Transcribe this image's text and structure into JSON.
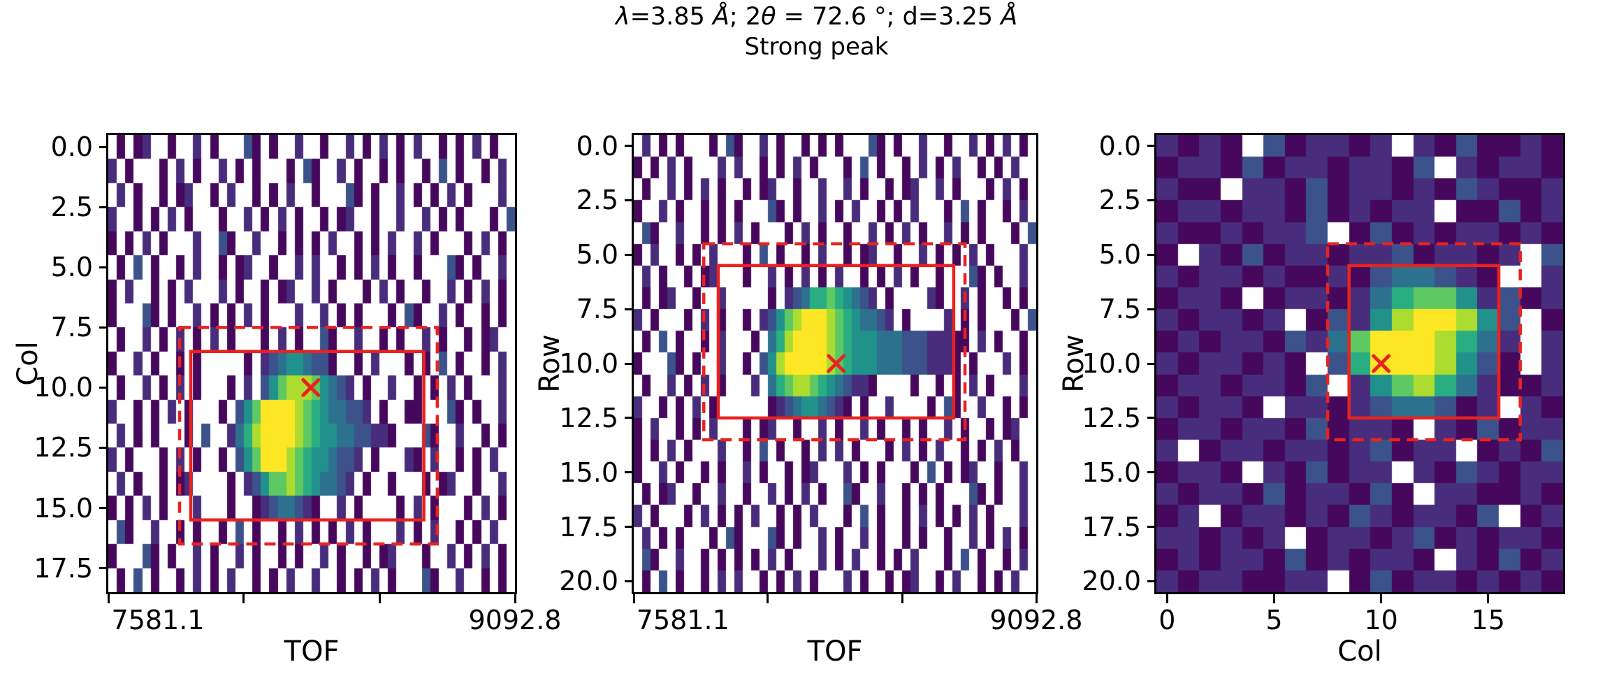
{
  "chart_data": {
    "type": "heatmap",
    "title_segments": [
      {
        "text": "λ",
        "italic": true
      },
      {
        "text": "=3.85 ",
        "italic": false
      },
      {
        "text": "Å",
        "italic": true
      },
      {
        "text": "; 2",
        "italic": false
      },
      {
        "text": "θ",
        "italic": true
      },
      {
        "text": " = 72.6 °; d=3.25 ",
        "italic": false
      },
      {
        "text": "Å",
        "italic": true
      }
    ],
    "title_plain": "λ=3.85 Å; 2θ = 72.6 °; d=3.25 Å",
    "subtitle": "Strong peak",
    "colormap": "viridis",
    "background": "#ffffff",
    "accent_red": "#e8221f",
    "empty_char": ".",
    "palette": {
      "1": "#46085c",
      "2": "#472d7b",
      "3": "#3b528b",
      "4": "#2c728e",
      "5": "#21918c",
      "6": "#28ae80",
      "7": "#5ec962",
      "8": "#addc30",
      "9": "#fde725"
    },
    "panels": [
      {
        "name": "col-vs-tof",
        "xlabel": "TOF",
        "ylabel": "Col",
        "x_range": [
          7581.1,
          9092.8
        ],
        "y_min": -0.5,
        "y_max": 18.5,
        "x_ticks": [
          {
            "f": 0.0,
            "label": "7581.1",
            "label_f": 0.122
          },
          {
            "f": 0.3333,
            "label": ""
          },
          {
            "f": 0.6667,
            "label": ""
          },
          {
            "f": 1.0,
            "label": "9092.8",
            "label_f": 1.0
          }
        ],
        "y_ticks": [
          {
            "v": 0,
            "label": "0.0"
          },
          {
            "v": 2.5,
            "label": "2.5"
          },
          {
            "v": 5,
            "label": "5.0"
          },
          {
            "v": 7.5,
            "label": "7.5"
          },
          {
            "v": 10,
            "label": "10.0"
          },
          {
            "v": 12.5,
            "label": "12.5"
          },
          {
            "v": 15,
            "label": "15.0"
          },
          {
            "v": 17.5,
            "label": "17.5"
          }
        ],
        "solid_box": {
          "x0f": 0.2027,
          "x1f": 0.776,
          "y0": 8.5,
          "y1": 15.5
        },
        "dashed_box": {
          "x0f": 0.1753,
          "x1f": 0.809,
          "y0": 7.5,
          "y1": 16.5
        },
        "marker": {
          "xf": 0.498,
          "y": 10.0
        },
        "grid": [
          ".1.12..1..2.1...31.1..2..1..2.1.2.1.2..1.1.2.1..",
          "2.1...1.2.1..2.1.1...1.31..2.1..1.1..1.3.1..1.2.",
          ".2.1..1.12..1.2..1.1.2..1...31.1..2.1.1.2.1...2.",
          "2..1.1.2.1...1..2.1.2.1..1.12..1..2..2.1.1...1.3",
          "1.1.2.1...2..31..2..1.1.1.2..1.1.2..2.1...1.2.1.",
          ".1.3.1..1.2..1.12..1..2.2..1.1.2.1..1...31.1..2.",
          "1.2..1.1.2...2.1..1.12..2.1...1.2.1..1..2.1.2.1.",
          "1...31.1..2.1.1.2.1...2..2.1.1...1.31..2.1..1.1.",
          ".1..2.1.2.1.2.1...1.2.1..31..2..1.1..2.1..1.12..",
          "1..2.1..1.1.....1.234554331..1.2...1.1.3.1..1.2.",
          ".1..2.1.2.1...1.2.35788875432.1..2..1.1.2.1...2.",
          "2..1.1.2.1...1.3579999876544332.1..11...31.1..2.",
          ".2.1.1...1.3..24689999876554433221...31..2..1.1.",
          "2.1...1.2.1..1.357999876554332.1...21.2..1.1.2..",
          ".2.1..1.12....1.2357787654432.1..1...1.12..1..2.",
          "1.1.2.1...2...1..12344321..2.1....1.2.1...1.2.1.",
          ".31..2..1.1..1.3.1..1.2.1.1.2.1...2.1.2..1.1.2..",
          "1...31.1..2.1..2.1..1.1..2.1..1.12...1..2.1.2.1.",
          ".1.3.1..1.2.1.2..1.1.2..2..1.1.2.1...31..2..1.1."
        ]
      },
      {
        "name": "row-vs-tof",
        "xlabel": "TOF",
        "ylabel": "Row",
        "x_range": [
          7581.1,
          9092.8
        ],
        "y_min": -0.5,
        "y_max": 20.5,
        "x_ticks": [
          {
            "f": 0.0,
            "label": "7581.1",
            "label_f": 0.122
          },
          {
            "f": 0.3333,
            "label": ""
          },
          {
            "f": 0.6667,
            "label": ""
          },
          {
            "f": 1.0,
            "label": "9092.8",
            "label_f": 1.0
          }
        ],
        "y_ticks": [
          {
            "v": 0,
            "label": "0.0"
          },
          {
            "v": 2.5,
            "label": "2.5"
          },
          {
            "v": 5,
            "label": "5.0"
          },
          {
            "v": 7.5,
            "label": "7.5"
          },
          {
            "v": 10,
            "label": "10.0"
          },
          {
            "v": 12.5,
            "label": "12.5"
          },
          {
            "v": 15,
            "label": "15.0"
          },
          {
            "v": 17.5,
            "label": "17.5"
          },
          {
            "v": 20,
            "label": "20.0"
          }
        ],
        "solid_box": {
          "x0f": 0.21,
          "x1f": 0.795,
          "y0": 5.5,
          "y1": 12.5
        },
        "dashed_box": {
          "x0f": 0.174,
          "x1f": 0.823,
          "y0": 4.5,
          "y1": 13.5
        },
        "marker": {
          "xf": 0.503,
          "y": 10.0
        },
        "grid": [
          ".2.1.1...1.31..2.1..1.1.1...31.1..2..1..2.1.2.1.",
          "1.1.2.1...2.2..1.1.2.1...1.3.1..1.2.1.2..1.1.2..",
          ".1..2.1.2.1..1.12..1..2..2.1..1.12..2.1...1.2.1.",
          "1..2.1..1.1.1...31.1..2.1.2..1.1.2...1.3.1..1.2.",
          ".31..2..1.1.2.1...1.2.1..1..2.1.2.1..2.1.1...1.3",
          "1.2..1.1.2...1.3.1..1.2..1.12..1..2.1.1.2.1...2.",
          ".2.1..1.12...1..2.1.2.1.2..1.1.2.1..1...31.1..2.",
          ".1.12..1..2.....1.23466765432.1....21..2.1..1.1.",
          "2.1...1.2.1..1.2357899987654432.1....2.1.1...1.3",
          ".1.3.1..1.2...1.468999987655544433322211.2.1..1.",
          "1...31.1..2..1.358999998765554443332221.1...2.1.",
          ".1..2.1.2.1...2.4678876543221....1..1.1.2.1...2.",
          "2..1.1.2.1......1234554321.1..2....1.31..2..1.1.",
          "1.2..1.1.2...1.12..1..2.1..2.1..1.1..2.1..1.12..",
          "1.1.2.1...2..1.3.1..1.2.2.1...1.2.1.2..1.1.2.1..",
          "1..2.1..1.1..2.1..1.12...2.1.1...1.3.1.12..1..2.",
          ".1.12..1..2..1..2.1.2.1..31..2..1.1.1...31.1..2.",
          "2.1...1.2.1.1.2..1.1.2...1.3.1..1.2.1.1.2.1...2.",
          ".2.1.1...1.31...31.1..2.1..2.1..1.1..1..2.1.2.1.",
          ".31..2..1.1.1.1.2.1...2.1.2..1.1.2...1.3.1..1.2.",
          ".1.3.1..1.2.2..1.1.2.1...2.1..1.12..1.2..1.1.2.."
        ]
      },
      {
        "name": "row-vs-col",
        "xlabel": "Col",
        "ylabel": "Row",
        "x_range": [
          -0.5,
          18.5
        ],
        "y_min": -0.5,
        "y_max": 20.5,
        "x_ticks": [
          {
            "f": 0.02632,
            "label": "0"
          },
          {
            "f": 0.28947,
            "label": "5"
          },
          {
            "f": 0.55263,
            "label": "10"
          },
          {
            "f": 0.81579,
            "label": "15"
          }
        ],
        "y_ticks": [
          {
            "v": 0,
            "label": "0.0"
          },
          {
            "v": 2.5,
            "label": "2.5"
          },
          {
            "v": 5,
            "label": "5.0"
          },
          {
            "v": 7.5,
            "label": "7.5"
          },
          {
            "v": 10,
            "label": "10.0"
          },
          {
            "v": 12.5,
            "label": "12.5"
          },
          {
            "v": 15,
            "label": "15.0"
          },
          {
            "v": 17.5,
            "label": "17.5"
          },
          {
            "v": 20,
            "label": "20.0"
          }
        ],
        "solid_box": {
          "x0f": 0.4737,
          "x1f": 0.8421,
          "y0": 5.5,
          "y1": 12.5
        },
        "dashed_box": {
          "x0f": 0.4211,
          "x1f": 0.8947,
          "y0": 4.5,
          "y1": 13.5
        },
        "marker": {
          "xf": 0.5526,
          "y": 10.0
        },
        "grid": [
          "2121.312212.2131121",
          "1221312212213.21221",
          "211.221312212132112",
          "1221221312122.11312",
          "21121223.1312122121",
          "1.213122122312212.3",
          "2122121121344321..2",
          "1221.12212467752312",
          "212212.1325899853.1",
          "12122132479998642.2",
          "2122121.369998531.2",
          "12212213.2578642112",
          "21221.2212344312.21",
          "122122131221.213122",
          "2.122122123122.1213",
          "1221.213122.2132122",
          "212213122131.221121",
          "12.1221213212213.12",
          "221212.122123121221",
          "1212213121221.21312",
          "21221122.1312212121"
        ]
      }
    ]
  }
}
